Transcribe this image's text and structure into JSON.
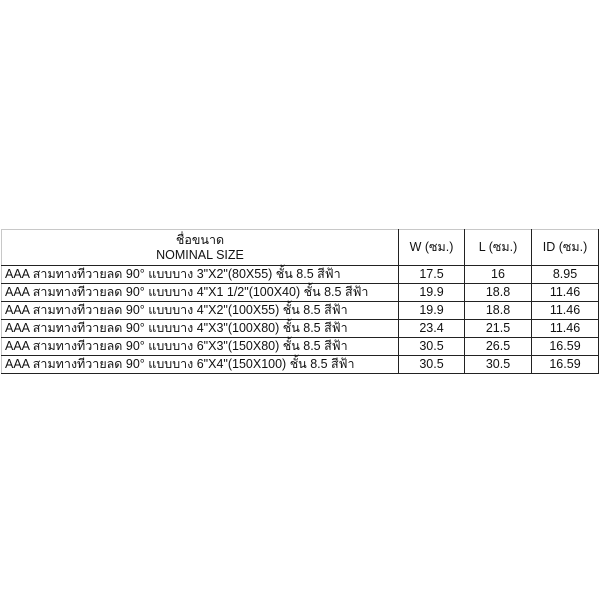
{
  "table": {
    "headers": {
      "name_th": "ชื่อขนาด",
      "name_en": "NOMINAL SIZE",
      "w": "W (ซม.)",
      "l": "L (ซม.)",
      "id": "ID (ซม.)"
    },
    "rows": [
      {
        "name": "AAA สามทางทีวายลด 90° แบบบาง 3\"X2\"(80X55) ชั้น 8.5 สีฟ้า",
        "w": "17.5",
        "l": "16",
        "id": "8.95"
      },
      {
        "name": "AAA สามทางทีวายลด 90° แบบบาง 4\"X1 1/2\"(100X40) ชั้น 8.5 สีฟ้า",
        "w": "19.9",
        "l": "18.8",
        "id": "11.46"
      },
      {
        "name": "AAA สามทางทีวายลด 90° แบบบาง 4\"X2\"(100X55) ชั้น 8.5 สีฟ้า",
        "w": "19.9",
        "l": "18.8",
        "id": "11.46"
      },
      {
        "name": "AAA สามทางทีวายลด 90° แบบบาง 4\"X3\"(100X80) ชั้น 8.5 สีฟ้า",
        "w": "23.4",
        "l": "21.5",
        "id": "11.46"
      },
      {
        "name": "AAA สามทางทีวายลด 90° แบบบาง 6\"X3\"(150X80) ชั้น 8.5 สีฟ้า",
        "w": "30.5",
        "l": "26.5",
        "id": "16.59"
      },
      {
        "name": "AAA สามทางทีวายลด 90° แบบบาง 6\"X4\"(150X100) ชั้น 8.5 สีฟ้า",
        "w": "30.5",
        "l": "30.5",
        "id": "16.59"
      }
    ]
  }
}
